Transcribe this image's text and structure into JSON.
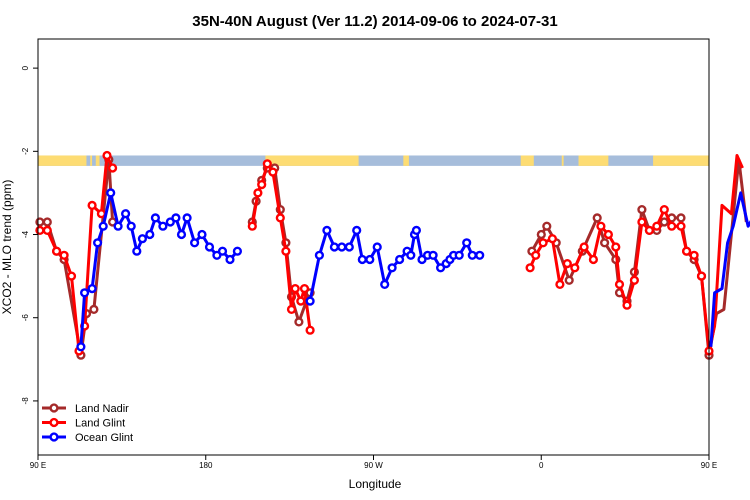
{
  "chart_data": {
    "type": "line",
    "title": "35N-40N August (Ver 11.2)   2014-09-06 to 2024-07-31",
    "xlabel": "Longitude",
    "ylabel": "XCO2 - MLO trend (ppm)",
    "xlim": [
      90,
      450
    ],
    "ylim": [
      -9.3,
      0.7
    ],
    "x_ticks": [
      {
        "value": 90,
        "label": "90 E"
      },
      {
        "value": 180,
        "label": "180"
      },
      {
        "value": 270,
        "label": "90 W"
      },
      {
        "value": 360,
        "label": "0"
      },
      {
        "value": 450,
        "label": "90 E"
      },
      {
        "value": 540,
        "label": "180"
      }
    ],
    "y_ticks": [
      {
        "value": 0,
        "label": "0"
      },
      {
        "value": -2,
        "label": "-2"
      },
      {
        "value": -4,
        "label": "-4"
      },
      {
        "value": -6,
        "label": "-6"
      },
      {
        "value": -8,
        "label": "-8"
      }
    ],
    "grid": false,
    "legend_position": "bottom-left",
    "land_ocean_band": {
      "y_range": [
        -2.35,
        -2.1
      ],
      "ocean_color": "#a6bddb",
      "land_color": "#fddc73",
      "land_segments": [
        [
          90,
          116
        ],
        [
          118,
          119
        ],
        [
          121,
          123
        ],
        [
          212,
          262
        ],
        [
          286,
          289
        ],
        [
          349,
          356
        ],
        [
          371,
          372
        ],
        [
          380,
          396
        ],
        [
          420,
          451
        ],
        [
          455,
          456
        ],
        [
          458,
          459
        ],
        [
          473,
          491
        ],
        [
          500,
          530
        ]
      ]
    },
    "series": [
      {
        "name": "Land Nadir",
        "color": "#a52a2a",
        "segments": [
          [
            [
              91,
              -3.7
            ],
            [
              95,
              -3.7
            ],
            [
              100,
              -4.4
            ],
            [
              104,
              -4.6
            ],
            [
              113,
              -6.9
            ],
            [
              116,
              -5.9
            ],
            [
              120,
              -5.8
            ],
            [
              128,
              -2.2
            ],
            [
              130,
              -3.7
            ]
          ],
          [
            [
              205,
              -3.7
            ],
            [
              207,
              -3.2
            ],
            [
              210,
              -2.7
            ],
            [
              213,
              -2.4
            ],
            [
              217,
              -2.4
            ],
            [
              220,
              -3.4
            ],
            [
              223,
              -4.2
            ],
            [
              226,
              -5.5
            ],
            [
              230,
              -6.1
            ],
            [
              234,
              -5.6
            ],
            [
              236,
              -5.4
            ]
          ],
          [
            [
              355,
              -4.4
            ],
            [
              360,
              -4.0
            ],
            [
              363,
              -3.8
            ],
            [
              368,
              -4.2
            ],
            [
              375,
              -5.1
            ],
            [
              382,
              -4.4
            ],
            [
              390,
              -3.6
            ],
            [
              394,
              -4.2
            ],
            [
              400,
              -4.6
            ],
            [
              402,
              -5.4
            ],
            [
              406,
              -5.6
            ],
            [
              410,
              -4.9
            ],
            [
              414,
              -3.4
            ],
            [
              418,
              -3.9
            ],
            [
              422,
              -3.9
            ],
            [
              426,
              -3.7
            ],
            [
              430,
              -3.6
            ],
            [
              435,
              -3.6
            ],
            [
              438,
              -4.4
            ],
            [
              442,
              -4.6
            ],
            [
              446,
              -5.0
            ],
            [
              450,
              -6.9
            ],
            [
              454,
              -5.9
            ],
            [
              458,
              -5.8
            ],
            [
              466,
              -2.2
            ],
            [
              470,
              -3.7
            ]
          ]
        ]
      },
      {
        "name": "Land Glint",
        "color": "#ff0000",
        "segments": [
          [
            [
              91,
              -3.9
            ],
            [
              95,
              -3.9
            ],
            [
              100,
              -4.4
            ],
            [
              104,
              -4.5
            ],
            [
              108,
              -5.0
            ],
            [
              112,
              -6.8
            ],
            [
              115,
              -6.2
            ],
            [
              119,
              -3.3
            ],
            [
              124,
              -3.5
            ],
            [
              127,
              -2.1
            ],
            [
              130,
              -2.4
            ]
          ],
          [
            [
              205,
              -3.8
            ],
            [
              208,
              -3.0
            ],
            [
              210,
              -2.8
            ],
            [
              213,
              -2.3
            ],
            [
              216,
              -2.5
            ],
            [
              220,
              -3.6
            ],
            [
              223,
              -4.4
            ],
            [
              226,
              -5.8
            ],
            [
              228,
              -5.3
            ],
            [
              231,
              -5.6
            ],
            [
              233,
              -5.3
            ],
            [
              236,
              -6.3
            ]
          ],
          [
            [
              354,
              -4.8
            ],
            [
              357,
              -4.5
            ],
            [
              361,
              -4.2
            ],
            [
              366,
              -4.1
            ],
            [
              370,
              -5.2
            ],
            [
              374,
              -4.7
            ],
            [
              378,
              -4.8
            ],
            [
              383,
              -4.3
            ],
            [
              388,
              -4.6
            ],
            [
              392,
              -3.8
            ],
            [
              396,
              -4.0
            ],
            [
              400,
              -4.3
            ],
            [
              402,
              -5.2
            ],
            [
              406,
              -5.7
            ],
            [
              410,
              -5.1
            ],
            [
              414,
              -3.7
            ],
            [
              418,
              -3.9
            ],
            [
              422,
              -3.8
            ],
            [
              426,
              -3.4
            ],
            [
              430,
              -3.8
            ],
            [
              435,
              -3.8
            ],
            [
              438,
              -4.4
            ],
            [
              442,
              -4.5
            ],
            [
              446,
              -5.0
            ],
            [
              450,
              -6.8
            ],
            [
              453,
              -6.2
            ],
            [
              457,
              -3.3
            ],
            [
              462,
              -3.5
            ],
            [
              465,
              -2.1
            ],
            [
              468,
              -2.4
            ]
          ]
        ]
      },
      {
        "name": "Ocean Glint",
        "color": "#0000ff",
        "segments": [
          [
            [
              113,
              -6.7
            ],
            [
              115,
              -5.4
            ],
            [
              119,
              -5.3
            ],
            [
              122,
              -4.2
            ],
            [
              125,
              -3.8
            ],
            [
              129,
              -3.0
            ],
            [
              133,
              -3.8
            ],
            [
              137,
              -3.5
            ],
            [
              140,
              -3.8
            ],
            [
              143,
              -4.4
            ],
            [
              146,
              -4.1
            ],
            [
              150,
              -4.0
            ],
            [
              153,
              -3.6
            ],
            [
              157,
              -3.8
            ],
            [
              161,
              -3.7
            ],
            [
              164,
              -3.6
            ],
            [
              167,
              -4.0
            ],
            [
              170,
              -3.6
            ],
            [
              174,
              -4.2
            ],
            [
              178,
              -4.0
            ],
            [
              182,
              -4.3
            ],
            [
              186,
              -4.5
            ],
            [
              189,
              -4.4
            ],
            [
              193,
              -4.6
            ],
            [
              197,
              -4.4
            ]
          ],
          [
            [
              236,
              -5.6
            ],
            [
              241,
              -4.5
            ],
            [
              245,
              -3.9
            ],
            [
              249,
              -4.3
            ],
            [
              253,
              -4.3
            ],
            [
              257,
              -4.3
            ],
            [
              261,
              -3.9
            ],
            [
              264,
              -4.6
            ],
            [
              268,
              -4.6
            ],
            [
              272,
              -4.3
            ],
            [
              276,
              -5.2
            ],
            [
              280,
              -4.8
            ],
            [
              284,
              -4.6
            ],
            [
              288,
              -4.4
            ],
            [
              290,
              -4.5
            ],
            [
              292,
              -4.0
            ],
            [
              293,
              -3.9
            ],
            [
              296,
              -4.6
            ],
            [
              299,
              -4.5
            ],
            [
              302,
              -4.5
            ],
            [
              306,
              -4.8
            ],
            [
              309,
              -4.7
            ],
            [
              311,
              -4.6
            ],
            [
              313,
              -4.5
            ],
            [
              316,
              -4.5
            ],
            [
              320,
              -4.2
            ],
            [
              323,
              -4.5
            ],
            [
              327,
              -4.5
            ]
          ],
          [
            [
              451,
              -6.7
            ],
            [
              453,
              -5.4
            ],
            [
              457,
              -5.3
            ],
            [
              460,
              -4.2
            ],
            [
              463,
              -3.8
            ],
            [
              467,
              -3.0
            ],
            [
              471,
              -3.8
            ],
            [
              475,
              -3.5
            ],
            [
              479,
              -3.9
            ],
            [
              483,
              -4.4
            ],
            [
              486,
              -4.1
            ],
            [
              490,
              -4.0
            ],
            [
              494,
              -3.6
            ]
          ]
        ]
      }
    ]
  }
}
